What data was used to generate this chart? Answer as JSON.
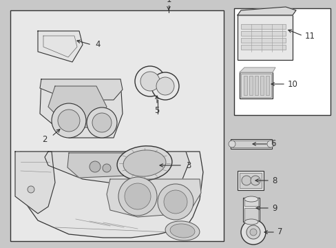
{
  "fig_width": 4.89,
  "fig_height": 3.6,
  "dpi": 100,
  "bg_color": "#c8c8c8",
  "box_color": "#e8e8e8",
  "white": "#ffffff",
  "lc": "#333333",
  "lc_thin": "#555555",
  "fs": 8.5
}
